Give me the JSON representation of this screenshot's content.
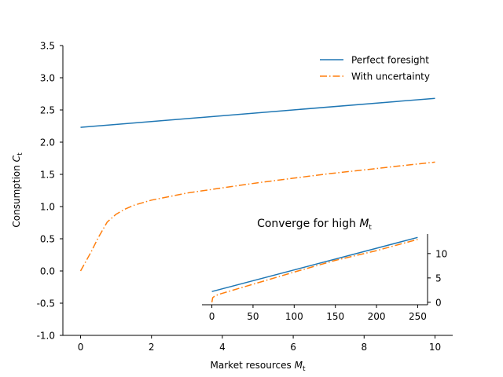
{
  "chart_data": [
    {
      "type": "line",
      "xlabel": "Market resources",
      "xlabel_sub": "t",
      "ylabel": "Consumption",
      "ylabel_sub": "t",
      "xlim": [
        -0.5,
        10.5
      ],
      "ylim": [
        -1.0,
        3.5
      ],
      "xticks": [
        0,
        2,
        4,
        6,
        8,
        10
      ],
      "yticks": [
        -1.0,
        -0.5,
        0.0,
        0.5,
        1.0,
        1.5,
        2.0,
        2.5,
        3.0,
        3.5
      ],
      "legend": "top-right",
      "grid": false,
      "series": [
        {
          "name": "Perfect foresight",
          "color": "#1f77b4",
          "style": "solid",
          "x": [
            0,
            10
          ],
          "y": [
            2.23,
            2.68
          ]
        },
        {
          "name": "With uncertainty",
          "color": "#ff7f0e",
          "style": "dashdot",
          "x": [
            0,
            0.3,
            0.5,
            0.75,
            1.0,
            1.25,
            1.5,
            2,
            3,
            4,
            5,
            6,
            7,
            8,
            9,
            10
          ],
          "y": [
            0.0,
            0.3,
            0.52,
            0.76,
            0.88,
            0.96,
            1.02,
            1.1,
            1.21,
            1.29,
            1.37,
            1.44,
            1.51,
            1.57,
            1.63,
            1.69
          ]
        }
      ]
    },
    {
      "type": "line",
      "title": "Converge for high",
      "title_var": "M",
      "title_sub": "t",
      "xlim": [
        -12,
        262
      ],
      "ylim": [
        -0.5,
        14.0
      ],
      "xticks": [
        0,
        50,
        100,
        150,
        200,
        250
      ],
      "yticks": [
        0,
        5,
        10
      ],
      "series": [
        {
          "color": "#1f77b4",
          "style": "solid",
          "x": [
            0,
            250
          ],
          "y": [
            2.2,
            13.3
          ]
        },
        {
          "color": "#ff7f0e",
          "style": "dashdot",
          "x": [
            0,
            1,
            3,
            5,
            10,
            50,
            100,
            150,
            200,
            250
          ],
          "y": [
            0.0,
            0.95,
            1.2,
            1.4,
            1.7,
            3.7,
            6.2,
            8.6,
            10.6,
            12.9
          ]
        }
      ]
    }
  ]
}
